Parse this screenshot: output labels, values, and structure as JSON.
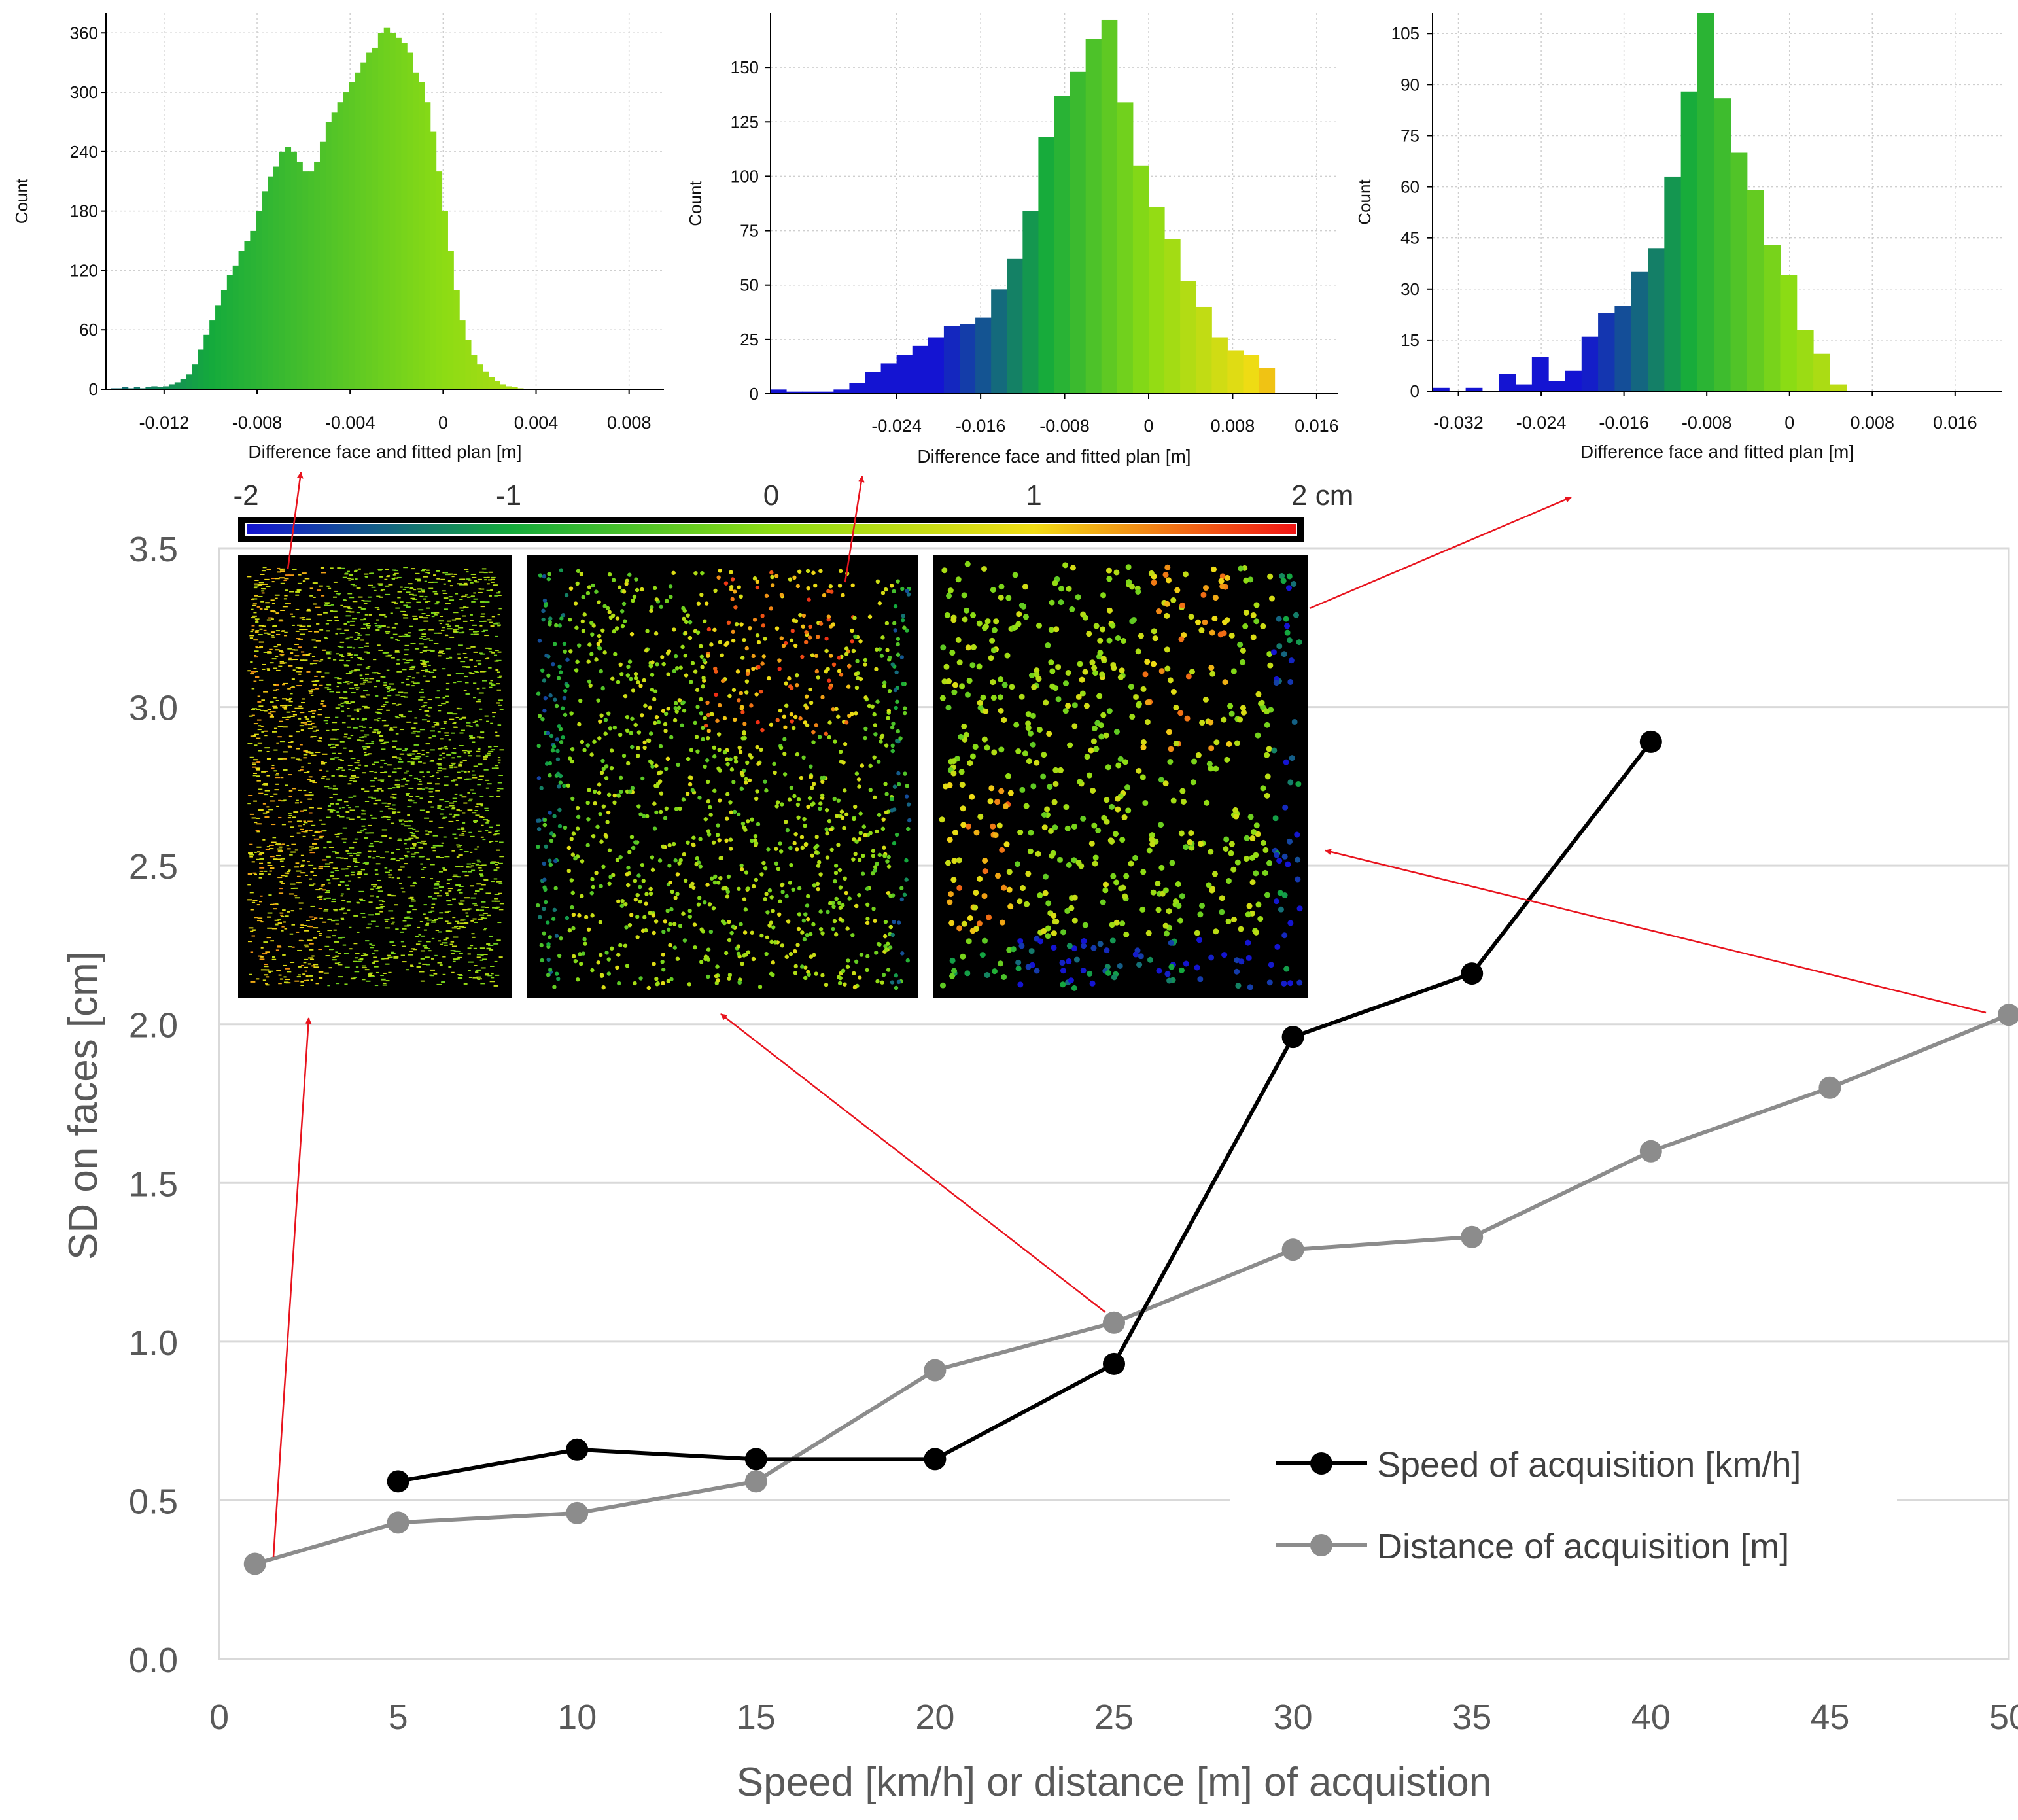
{
  "chart_data": [
    {
      "type": "line",
      "id": "main",
      "xlabel": "Speed [km/h] or distance [m] of acquistion",
      "ylabel": "SD on faces [cm]",
      "xlim": [
        0,
        50
      ],
      "ylim": [
        0,
        3.5
      ],
      "xticks": [
        "0",
        "5",
        "10",
        "15",
        "20",
        "25",
        "30",
        "35",
        "40",
        "45",
        "50"
      ],
      "yticks": [
        "0.0",
        "0.5",
        "1.0",
        "1.5",
        "2.0",
        "2.5",
        "3.0",
        "3.5"
      ],
      "grid": true,
      "legend_position": "bottom-right",
      "series": [
        {
          "name": "Speed of acquisition [km/h]",
          "color": "#000000",
          "x": [
            5,
            10,
            15,
            20,
            25,
            30,
            35,
            40
          ],
          "y": [
            0.56,
            0.66,
            0.63,
            0.63,
            0.93,
            1.96,
            2.16,
            2.89
          ]
        },
        {
          "name": "Distance of acquisition [m]",
          "color": "#8c8c8c",
          "x": [
            1,
            5,
            10,
            15,
            20,
            25,
            30,
            35,
            40,
            45,
            50
          ],
          "y": [
            0.3,
            0.43,
            0.46,
            0.56,
            0.91,
            1.06,
            1.29,
            1.33,
            1.6,
            1.8,
            2.03
          ]
        }
      ]
    },
    {
      "type": "bar",
      "id": "hist1",
      "xlabel": "Difference face and fitted plan [m]",
      "ylabel": "Count",
      "xlim": [
        -0.0145,
        0.0095
      ],
      "ylim": [
        0,
        380
      ],
      "xticks": [
        "-0.012",
        "-0.008",
        "-0.004",
        "0",
        "0.004",
        "0.008"
      ],
      "xtick_values": [
        -0.012,
        -0.008,
        -0.004,
        0,
        0.004,
        0.008
      ],
      "yticks": [
        "0",
        "60",
        "120",
        "180",
        "240",
        "300",
        "360"
      ],
      "ytick_values": [
        0,
        60,
        120,
        180,
        240,
        300,
        360
      ],
      "bin_start": -0.0143,
      "bin_width": 0.00025,
      "values": [
        1,
        1,
        2,
        1,
        2,
        1,
        2,
        3,
        2,
        3,
        5,
        7,
        10,
        15,
        25,
        40,
        55,
        70,
        85,
        100,
        115,
        125,
        140,
        150,
        160,
        180,
        200,
        215,
        225,
        240,
        245,
        240,
        230,
        220,
        220,
        230,
        250,
        270,
        280,
        290,
        300,
        310,
        320,
        330,
        340,
        345,
        360,
        365,
        360,
        355,
        350,
        340,
        320,
        310,
        290,
        260,
        220,
        180,
        140,
        100,
        70,
        50,
        35,
        25,
        18,
        12,
        8,
        5,
        3,
        2,
        1
      ],
      "colormap": "blue-green-yellow-red",
      "color_range": [
        -0.02,
        0.02
      ]
    },
    {
      "type": "bar",
      "id": "hist2",
      "xlabel": "Difference face and fitted plan [m]",
      "ylabel": "Count",
      "xlim": [
        -0.036,
        0.018
      ],
      "ylim": [
        0,
        175
      ],
      "xticks": [
        "-0.024",
        "-0.016",
        "-0.008",
        "0",
        "0.008",
        "0.016"
      ],
      "xtick_values": [
        -0.024,
        -0.016,
        -0.008,
        0,
        0.008,
        0.016
      ],
      "yticks": [
        "0",
        "25",
        "50",
        "75",
        "100",
        "125",
        "150"
      ],
      "ytick_values": [
        0,
        25,
        50,
        75,
        100,
        125,
        150
      ],
      "bin_start": -0.036,
      "bin_width": 0.0015,
      "values": [
        2,
        1,
        1,
        1,
        2,
        5,
        10,
        14,
        18,
        22,
        26,
        31,
        32,
        35,
        48,
        62,
        84,
        118,
        137,
        148,
        163,
        172,
        134,
        105,
        86,
        71,
        52,
        40,
        26,
        20,
        18,
        12
      ],
      "colormap": "blue-green-yellow-red",
      "color_range": [
        -0.02,
        0.02
      ]
    },
    {
      "type": "bar",
      "id": "hist3",
      "xlabel": "Difference face and fitted plan [m]",
      "ylabel": "Count",
      "xlim": [
        -0.0345,
        0.0205
      ],
      "ylim": [
        0,
        111
      ],
      "xticks": [
        "-0.032",
        "-0.024",
        "-0.016",
        "-0.008",
        "0",
        "0.008",
        "0.016"
      ],
      "xtick_values": [
        -0.032,
        -0.024,
        -0.016,
        -0.008,
        0,
        0.008,
        0.016
      ],
      "yticks": [
        "0",
        "15",
        "30",
        "45",
        "60",
        "75",
        "90",
        "105"
      ],
      "ytick_values": [
        0,
        15,
        30,
        45,
        60,
        75,
        90,
        105
      ],
      "bin_start": -0.0345,
      "bin_width": 0.0016,
      "values": [
        1,
        0,
        1,
        0,
        5,
        2,
        10,
        3,
        6,
        16,
        23,
        25,
        35,
        42,
        63,
        88,
        112,
        86,
        70,
        59,
        43,
        34,
        18,
        11,
        2
      ],
      "colormap": "blue-green-yellow-red",
      "color_range": [
        -0.02,
        0.02
      ]
    }
  ],
  "colorbar": {
    "labels": [
      "-2",
      "-1",
      "0",
      "1",
      "2 cm"
    ],
    "label_values": [
      -2,
      -1,
      0,
      1,
      2
    ],
    "min": -2,
    "max": 2,
    "colors": [
      "#1414d2",
      "#14c814",
      "#f0f01e",
      "#f01414"
    ]
  },
  "thumbnails": [
    {
      "id": "thumb1",
      "style": "dense"
    },
    {
      "id": "thumb2",
      "style": "medium"
    },
    {
      "id": "thumb3",
      "style": "sparse"
    }
  ],
  "annotation_color": "#e8141e",
  "grid_color": "#d9d9d9"
}
